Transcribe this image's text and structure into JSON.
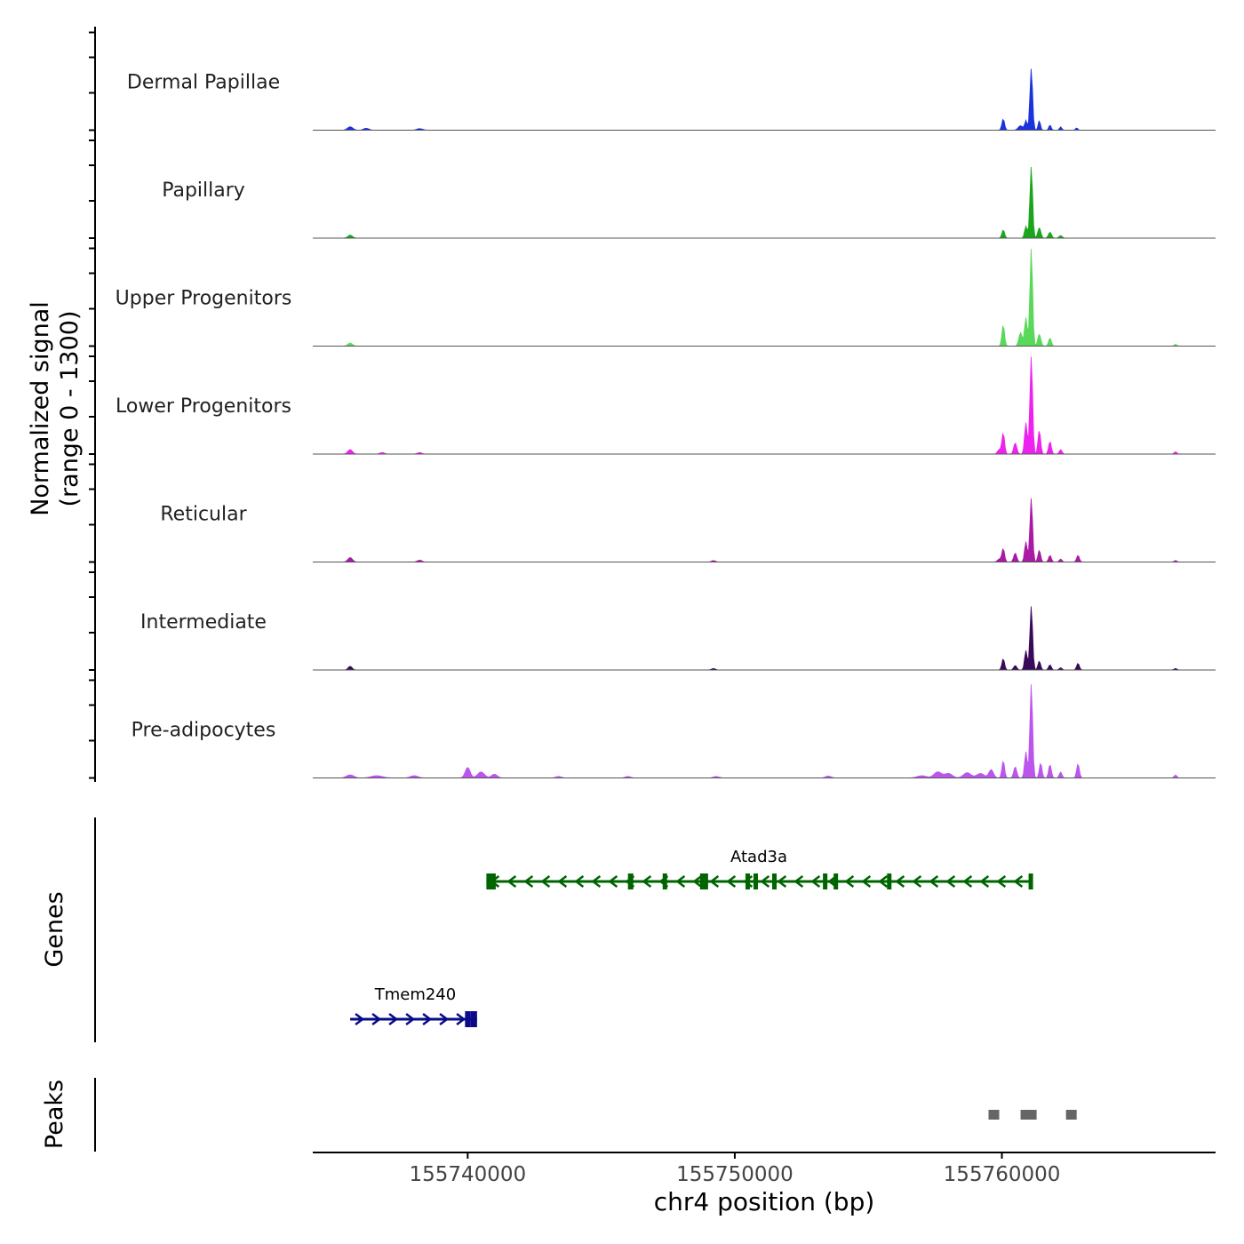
{
  "chart_data": {
    "type": "area",
    "title": "",
    "ylabel_line1": "Normalized signal",
    "ylabel_line2": "(range 0 - 1300)",
    "y_range": [
      0,
      1300
    ],
    "xlabel": "chr4 position (bp)",
    "x_range": [
      155734200,
      155768000
    ],
    "x_ticks": [
      155740000,
      155750000,
      155760000
    ],
    "x_tick_labels": [
      "155740000",
      "155750000",
      "155760000"
    ],
    "tracks": [
      {
        "name": "Dermal Papillae",
        "color": "#1a33dd",
        "peaks": [
          [
            155735600,
            45,
            140
          ],
          [
            155736200,
            25,
            140
          ],
          [
            155738200,
            20,
            160
          ],
          [
            155760050,
            150,
            70
          ],
          [
            155760700,
            60,
            120
          ],
          [
            155760900,
            130,
            60
          ],
          [
            155761100,
            820,
            70
          ],
          [
            155761400,
            130,
            60
          ],
          [
            155761800,
            70,
            60
          ],
          [
            155762200,
            45,
            60
          ],
          [
            155762800,
            30,
            60
          ]
        ]
      },
      {
        "name": "Papillary",
        "color": "#1aa51a",
        "peaks": [
          [
            155735600,
            40,
            120
          ],
          [
            155760050,
            110,
            70
          ],
          [
            155760900,
            160,
            70
          ],
          [
            155761100,
            950,
            70
          ],
          [
            155761400,
            140,
            80
          ],
          [
            155761800,
            80,
            80
          ],
          [
            155762200,
            35,
            80
          ]
        ]
      },
      {
        "name": "Upper Progenitors",
        "color": "#5ad85a",
        "peaks": [
          [
            155735600,
            40,
            120
          ],
          [
            155760050,
            280,
            70
          ],
          [
            155760700,
            180,
            90
          ],
          [
            155760900,
            380,
            70
          ],
          [
            155761100,
            1300,
            70
          ],
          [
            155761400,
            160,
            80
          ],
          [
            155761800,
            110,
            70
          ],
          [
            155766500,
            25,
            70
          ]
        ]
      },
      {
        "name": "Lower Progenitors",
        "color": "#ee22ee",
        "peaks": [
          [
            155735600,
            60,
            120
          ],
          [
            155736800,
            20,
            120
          ],
          [
            155738200,
            20,
            120
          ],
          [
            155759900,
            60,
            90
          ],
          [
            155760050,
            280,
            70
          ],
          [
            155760500,
            150,
            80
          ],
          [
            155760900,
            420,
            70
          ],
          [
            155761100,
            1300,
            70
          ],
          [
            155761400,
            320,
            70
          ],
          [
            155761800,
            170,
            70
          ],
          [
            155762200,
            60,
            70
          ],
          [
            155766500,
            30,
            70
          ]
        ]
      },
      {
        "name": "Reticular",
        "color": "#aa1aa5",
        "peaks": [
          [
            155735600,
            60,
            120
          ],
          [
            155738200,
            25,
            120
          ],
          [
            155749200,
            20,
            100
          ],
          [
            155759900,
            40,
            90
          ],
          [
            155760050,
            180,
            70
          ],
          [
            155760500,
            120,
            80
          ],
          [
            155760900,
            270,
            70
          ],
          [
            155761100,
            850,
            70
          ],
          [
            155761400,
            160,
            70
          ],
          [
            155761800,
            90,
            70
          ],
          [
            155762200,
            40,
            70
          ],
          [
            155762850,
            90,
            70
          ],
          [
            155766500,
            20,
            70
          ]
        ]
      },
      {
        "name": "Intermediate",
        "color": "#3a0a5a",
        "peaks": [
          [
            155735600,
            50,
            100
          ],
          [
            155749200,
            20,
            100
          ],
          [
            155760050,
            150,
            70
          ],
          [
            155760500,
            60,
            80
          ],
          [
            155760900,
            260,
            70
          ],
          [
            155761100,
            850,
            70
          ],
          [
            155761400,
            120,
            70
          ],
          [
            155761800,
            70,
            70
          ],
          [
            155762200,
            30,
            70
          ],
          [
            155762850,
            90,
            70
          ],
          [
            155766500,
            20,
            70
          ]
        ]
      },
      {
        "name": "Pre-adipocytes",
        "color": "#bb55ee",
        "peaks": [
          [
            155735600,
            40,
            200
          ],
          [
            155736600,
            30,
            300
          ],
          [
            155738000,
            30,
            200
          ],
          [
            155740000,
            140,
            130
          ],
          [
            155740500,
            80,
            180
          ],
          [
            155741000,
            50,
            150
          ],
          [
            155743400,
            20,
            150
          ],
          [
            155746000,
            20,
            150
          ],
          [
            155749300,
            20,
            150
          ],
          [
            155753500,
            25,
            150
          ],
          [
            155757000,
            30,
            250
          ],
          [
            155757600,
            80,
            200
          ],
          [
            155758000,
            60,
            200
          ],
          [
            155758700,
            70,
            200
          ],
          [
            155759200,
            60,
            200
          ],
          [
            155759600,
            110,
            120
          ],
          [
            155760050,
            230,
            70
          ],
          [
            155760500,
            150,
            80
          ],
          [
            155760900,
            350,
            70
          ],
          [
            155761100,
            1250,
            70
          ],
          [
            155761450,
            200,
            70
          ],
          [
            155761800,
            180,
            70
          ],
          [
            155762200,
            80,
            70
          ],
          [
            155762850,
            190,
            70
          ],
          [
            155766500,
            40,
            70
          ]
        ]
      }
    ],
    "genes": [
      {
        "name": "Tmem240",
        "color": "#0a0a8a",
        "strand": "+",
        "start": 155735600,
        "end": 155740350,
        "exons": [
          [
            155739900,
            155740100
          ],
          [
            155740100,
            155740350
          ]
        ]
      },
      {
        "name": "Atad3a",
        "color": "#006400",
        "strand": "-",
        "start": 155740700,
        "end": 155761100,
        "exons": [
          [
            155740700,
            155741050
          ],
          [
            155746000,
            155746200
          ],
          [
            155747300,
            155747450
          ],
          [
            155748700,
            155749000
          ],
          [
            155750400,
            155750500
          ],
          [
            155750700,
            155750800
          ],
          [
            155751400,
            155751500
          ],
          [
            155753300,
            155753450
          ],
          [
            155753700,
            155753800
          ],
          [
            155755700,
            155755850
          ],
          [
            155761000,
            155761100
          ]
        ]
      }
    ],
    "peaks_track": {
      "label": "Peaks",
      "regions": [
        [
          155759500,
          155759900
        ],
        [
          155760700,
          155761300
        ],
        [
          155762400,
          155762800
        ]
      ],
      "color": "#666666"
    },
    "genes_label": "Genes"
  }
}
